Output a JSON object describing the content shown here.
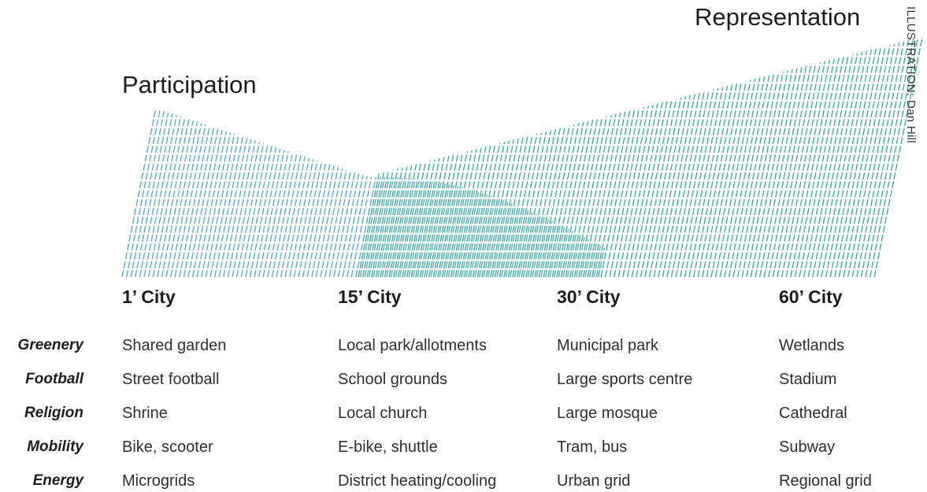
{
  "titles": {
    "participation": "Participation",
    "representation": "Representation"
  },
  "credit": "ILLUSTRATION: Dan Hill",
  "colors": {
    "participation": "#5aa9cf",
    "representation": "#3fae8e",
    "text": "#2b2b2b"
  },
  "cities": [
    "1’ City",
    "15’ City",
    "30’ City",
    "60’ City"
  ],
  "rows": [
    {
      "label": "Greenery",
      "values": [
        "Shared garden",
        "Local park/allotments",
        "Municipal park",
        "Wetlands"
      ]
    },
    {
      "label": "Football",
      "values": [
        "Street football",
        "School grounds",
        "Large sports centre",
        "Stadium"
      ]
    },
    {
      "label": "Religion",
      "values": [
        "Shrine",
        "Local church",
        "Large mosque",
        "Cathedral"
      ]
    },
    {
      "label": "Mobility",
      "values": [
        "Bike, scooter",
        "E-bike, shuttle",
        "Tram, bus",
        "Subway"
      ]
    },
    {
      "label": "Energy",
      "values": [
        "Microgrids",
        "District heating/cooling",
        "Urban grid",
        "Regional grid"
      ]
    }
  ]
}
